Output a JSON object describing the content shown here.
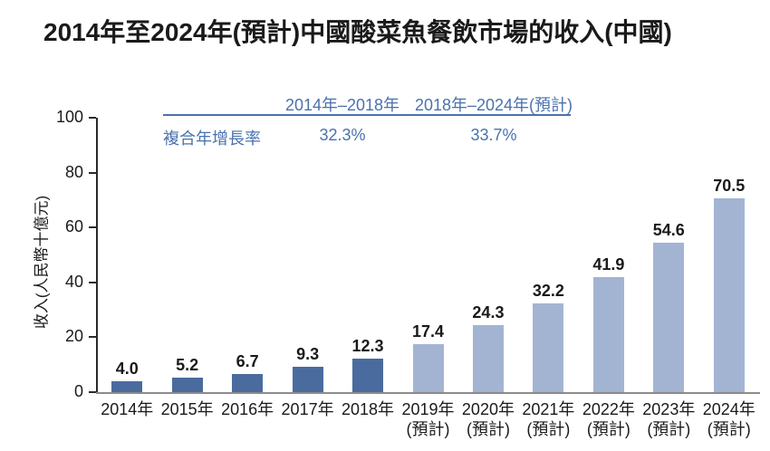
{
  "title": "2014年至2024年(預計)中國酸菜魚餐飲市場的收入(中國)",
  "colors": {
    "accent_blue": "#4a72ad",
    "bar_actual": "#4a6b9e",
    "bar_forecast": "#a3b4d3",
    "axis_line": "#2a2a2a",
    "baseline_gray": "#8c8c8c",
    "text": "#1a1a1a"
  },
  "chart_data": {
    "type": "bar",
    "title": "2014年至2024年(預計)中國酸菜魚餐飲市場的收入(中國)",
    "ylabel": "收入(人民幣十億元)",
    "xlabel": "",
    "ylim": [
      0,
      100
    ],
    "yticks": [
      0,
      20,
      40,
      60,
      80,
      100
    ],
    "grid": false,
    "legend": false,
    "forecast_label": "(預計)",
    "points": [
      {
        "category": "2014年",
        "value": 4.0,
        "label": "4.0",
        "forecast": false
      },
      {
        "category": "2015年",
        "value": 5.2,
        "label": "5.2",
        "forecast": false
      },
      {
        "category": "2016年",
        "value": 6.7,
        "label": "6.7",
        "forecast": false
      },
      {
        "category": "2017年",
        "value": 9.3,
        "label": "9.3",
        "forecast": false
      },
      {
        "category": "2018年",
        "value": 12.3,
        "label": "12.3",
        "forecast": false
      },
      {
        "category": "2019年",
        "value": 17.4,
        "label": "17.4",
        "forecast": true
      },
      {
        "category": "2020年",
        "value": 24.3,
        "label": "24.3",
        "forecast": true
      },
      {
        "category": "2021年",
        "value": 32.2,
        "label": "32.2",
        "forecast": true
      },
      {
        "category": "2022年",
        "value": 41.9,
        "label": "41.9",
        "forecast": true
      },
      {
        "category": "2023年",
        "value": 54.6,
        "label": "54.6",
        "forecast": true
      },
      {
        "category": "2024年",
        "value": 70.5,
        "label": "70.5",
        "forecast": true
      }
    ],
    "cagr": {
      "row_label": "複合年增長率",
      "columns": [
        {
          "header": "2014年–2018年",
          "value": "32.3%"
        },
        {
          "header": "2018年–2024年(預計)",
          "value": "33.7%"
        }
      ]
    }
  }
}
